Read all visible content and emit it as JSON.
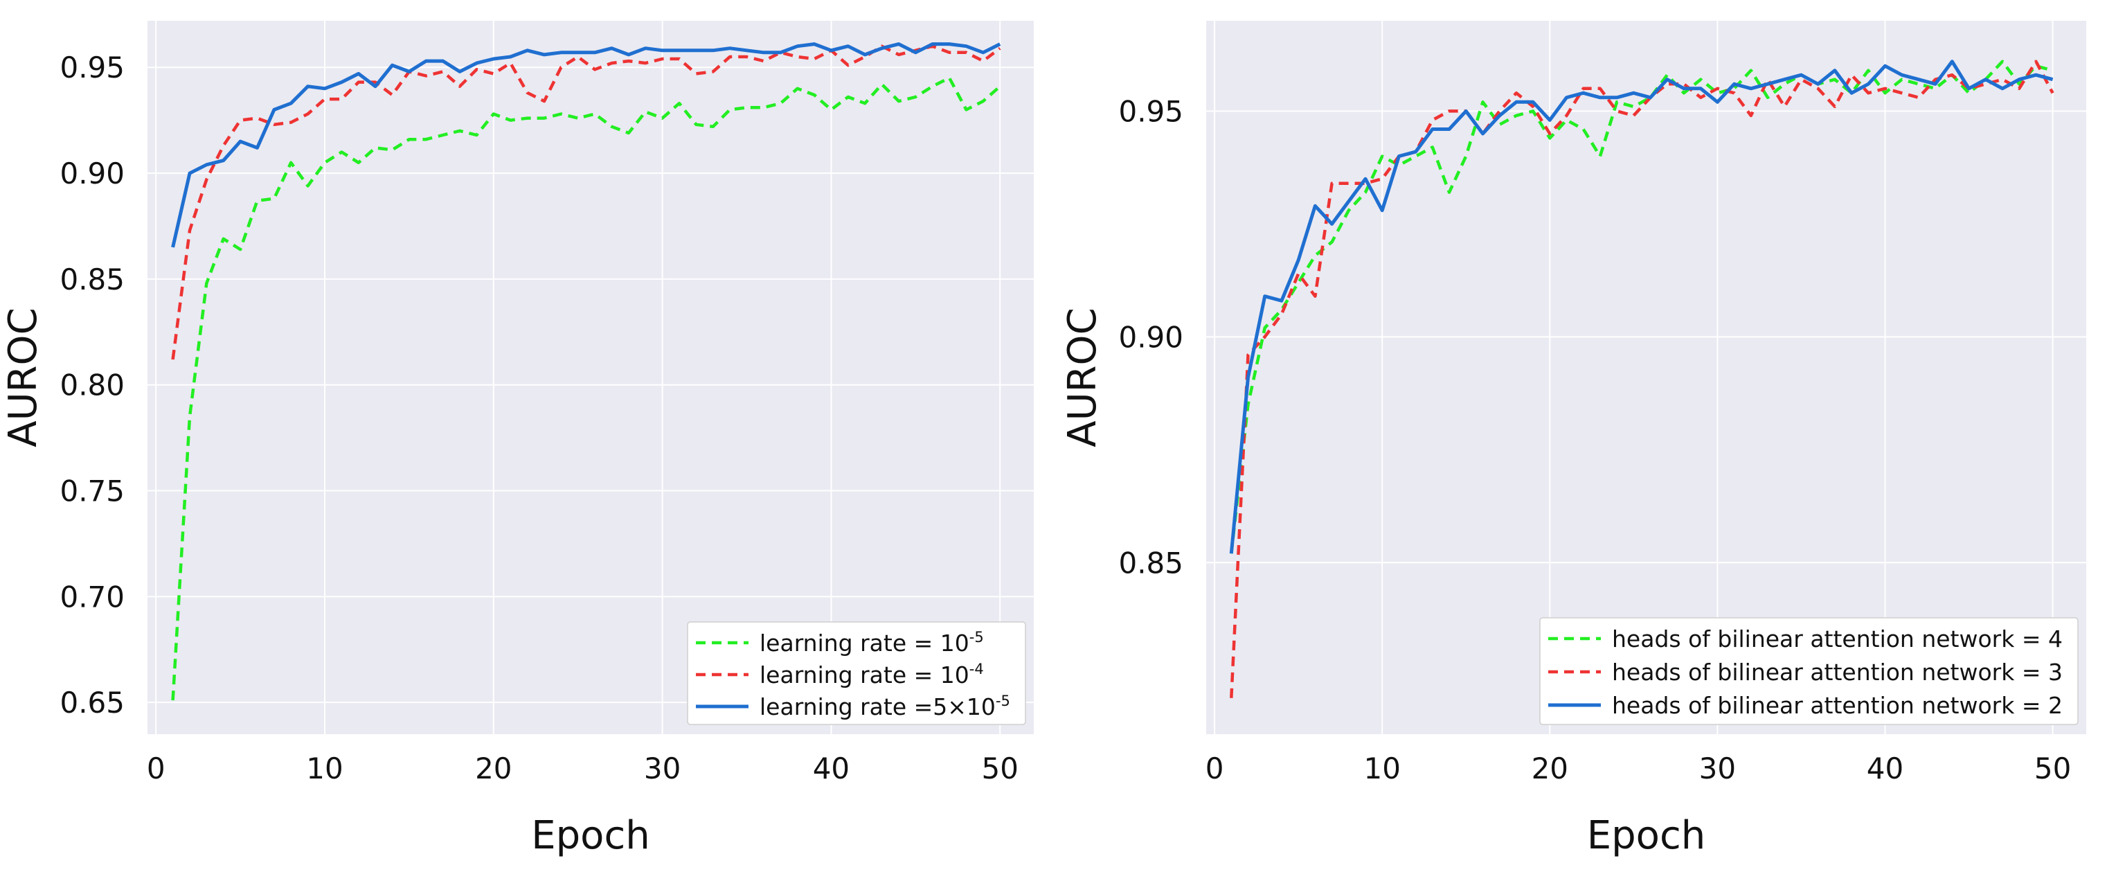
{
  "chart_data": [
    {
      "type": "line",
      "title": "",
      "xlabel": "Epoch",
      "ylabel": "AUROC",
      "xlim": [
        -0.5,
        52
      ],
      "ylim": [
        0.635,
        0.972
      ],
      "xticks": [
        0,
        10,
        20,
        30,
        40,
        50
      ],
      "xtick_labels": [
        "0",
        "10",
        "20",
        "30",
        "40",
        "50"
      ],
      "yticks": [
        0.65,
        0.7,
        0.75,
        0.8,
        0.85,
        0.9,
        0.95
      ],
      "ytick_labels": [
        "0.65",
        "0.70",
        "0.75",
        "0.80",
        "0.85",
        "0.90",
        "0.95"
      ],
      "grid": true,
      "legend_position": "bottom-right",
      "x": [
        1,
        2,
        3,
        4,
        5,
        6,
        7,
        8,
        9,
        10,
        11,
        12,
        13,
        14,
        15,
        16,
        17,
        18,
        19,
        20,
        21,
        22,
        23,
        24,
        25,
        26,
        27,
        28,
        29,
        30,
        31,
        32,
        33,
        34,
        35,
        36,
        37,
        38,
        39,
        40,
        41,
        42,
        43,
        44,
        45,
        46,
        47,
        48,
        49,
        50
      ],
      "series": [
        {
          "name": "learning rate = 10-5",
          "legend_base": "learning rate = 10",
          "legend_sup": "-5",
          "color": "#22ee22",
          "dash": "dashed",
          "values": [
            0.651,
            0.785,
            0.848,
            0.869,
            0.864,
            0.887,
            0.888,
            0.905,
            0.894,
            0.905,
            0.91,
            0.905,
            0.912,
            0.911,
            0.916,
            0.916,
            0.918,
            0.92,
            0.918,
            0.928,
            0.925,
            0.926,
            0.926,
            0.928,
            0.926,
            0.928,
            0.922,
            0.919,
            0.929,
            0.926,
            0.933,
            0.923,
            0.922,
            0.93,
            0.931,
            0.931,
            0.933,
            0.94,
            0.937,
            0.93,
            0.936,
            0.933,
            0.942,
            0.934,
            0.936,
            0.941,
            0.945,
            0.93,
            0.934,
            0.941
          ]
        },
        {
          "name": "learning rate = 10-4",
          "legend_base": "learning rate = 10",
          "legend_sup": "-4",
          "color": "#ee3333",
          "dash": "dashed",
          "values": [
            0.812,
            0.873,
            0.897,
            0.913,
            0.925,
            0.926,
            0.923,
            0.924,
            0.928,
            0.935,
            0.935,
            0.943,
            0.943,
            0.937,
            0.948,
            0.946,
            0.948,
            0.941,
            0.949,
            0.947,
            0.952,
            0.938,
            0.934,
            0.95,
            0.955,
            0.949,
            0.952,
            0.953,
            0.952,
            0.954,
            0.954,
            0.947,
            0.948,
            0.955,
            0.955,
            0.953,
            0.957,
            0.955,
            0.954,
            0.958,
            0.951,
            0.955,
            0.96,
            0.956,
            0.958,
            0.96,
            0.957,
            0.957,
            0.953,
            0.959
          ]
        },
        {
          "name": "learning rate =5×10-5",
          "legend_base": "learning rate =5×10",
          "legend_sup": "-5",
          "color": "#1f6fd0",
          "dash": "solid",
          "values": [
            0.865,
            0.9,
            0.904,
            0.906,
            0.915,
            0.912,
            0.93,
            0.933,
            0.941,
            0.94,
            0.943,
            0.947,
            0.941,
            0.951,
            0.948,
            0.953,
            0.953,
            0.948,
            0.952,
            0.954,
            0.955,
            0.958,
            0.956,
            0.957,
            0.957,
            0.957,
            0.959,
            0.956,
            0.959,
            0.958,
            0.958,
            0.958,
            0.958,
            0.959,
            0.958,
            0.957,
            0.957,
            0.96,
            0.961,
            0.958,
            0.96,
            0.956,
            0.959,
            0.961,
            0.957,
            0.961,
            0.961,
            0.96,
            0.957,
            0.961
          ]
        }
      ]
    },
    {
      "type": "line",
      "title": "",
      "xlabel": "Epoch",
      "ylabel": "AUROC",
      "xlim": [
        -0.5,
        52
      ],
      "ylim": [
        0.812,
        0.97
      ],
      "xticks": [
        0,
        10,
        20,
        30,
        40,
        50
      ],
      "xtick_labels": [
        "0",
        "10",
        "20",
        "30",
        "40",
        "50"
      ],
      "yticks": [
        0.85,
        0.9,
        0.95
      ],
      "ytick_labels": [
        "0.85",
        "0.90",
        "0.95"
      ],
      "grid": true,
      "legend_position": "bottom-right",
      "x": [
        1,
        2,
        3,
        4,
        5,
        6,
        7,
        8,
        9,
        10,
        11,
        12,
        13,
        14,
        15,
        16,
        17,
        18,
        19,
        20,
        21,
        22,
        23,
        24,
        25,
        26,
        27,
        28,
        29,
        30,
        31,
        32,
        33,
        34,
        35,
        36,
        37,
        38,
        39,
        40,
        41,
        42,
        43,
        44,
        45,
        46,
        47,
        48,
        49,
        50
      ],
      "series": [
        {
          "name": "heads of bilinear attention network = 4",
          "legend_base": "heads of bilinear attention network = 4",
          "legend_sup": "",
          "color": "#22ee22",
          "dash": "dashed",
          "values": [
            0.852,
            0.885,
            0.902,
            0.906,
            0.912,
            0.918,
            0.921,
            0.928,
            0.932,
            0.94,
            0.938,
            0.94,
            0.942,
            0.932,
            0.94,
            0.952,
            0.947,
            0.949,
            0.95,
            0.944,
            0.948,
            0.946,
            0.94,
            0.952,
            0.951,
            0.953,
            0.958,
            0.954,
            0.957,
            0.954,
            0.955,
            0.959,
            0.953,
            0.956,
            0.958,
            0.956,
            0.957,
            0.954,
            0.959,
            0.954,
            0.957,
            0.956,
            0.955,
            0.958,
            0.954,
            0.957,
            0.961,
            0.956,
            0.96,
            0.959
          ]
        },
        {
          "name": "heads of bilinear attention network = 3",
          "legend_base": "heads of bilinear attention network = 3",
          "legend_sup": "",
          "color": "#ee3333",
          "dash": "dashed",
          "values": [
            0.82,
            0.896,
            0.9,
            0.905,
            0.914,
            0.909,
            0.934,
            0.934,
            0.934,
            0.935,
            0.94,
            0.941,
            0.948,
            0.95,
            0.95,
            0.945,
            0.95,
            0.954,
            0.951,
            0.945,
            0.949,
            0.955,
            0.955,
            0.95,
            0.949,
            0.953,
            0.956,
            0.956,
            0.953,
            0.955,
            0.954,
            0.949,
            0.957,
            0.951,
            0.957,
            0.955,
            0.951,
            0.958,
            0.954,
            0.955,
            0.954,
            0.953,
            0.957,
            0.958,
            0.955,
            0.956,
            0.957,
            0.955,
            0.961,
            0.954
          ]
        },
        {
          "name": "heads of bilinear attention network = 2",
          "legend_base": "heads of bilinear attention network = 2",
          "legend_sup": "",
          "color": "#1f6fd0",
          "dash": "solid",
          "values": [
            0.852,
            0.891,
            0.909,
            0.908,
            0.917,
            0.929,
            0.925,
            0.93,
            0.935,
            0.928,
            0.94,
            0.941,
            0.946,
            0.946,
            0.95,
            0.945,
            0.949,
            0.952,
            0.952,
            0.948,
            0.953,
            0.954,
            0.953,
            0.953,
            0.954,
            0.953,
            0.957,
            0.955,
            0.955,
            0.952,
            0.956,
            0.955,
            0.956,
            0.957,
            0.958,
            0.956,
            0.959,
            0.954,
            0.956,
            0.96,
            0.958,
            0.957,
            0.956,
            0.961,
            0.955,
            0.957,
            0.955,
            0.957,
            0.958,
            0.957
          ]
        }
      ]
    }
  ]
}
